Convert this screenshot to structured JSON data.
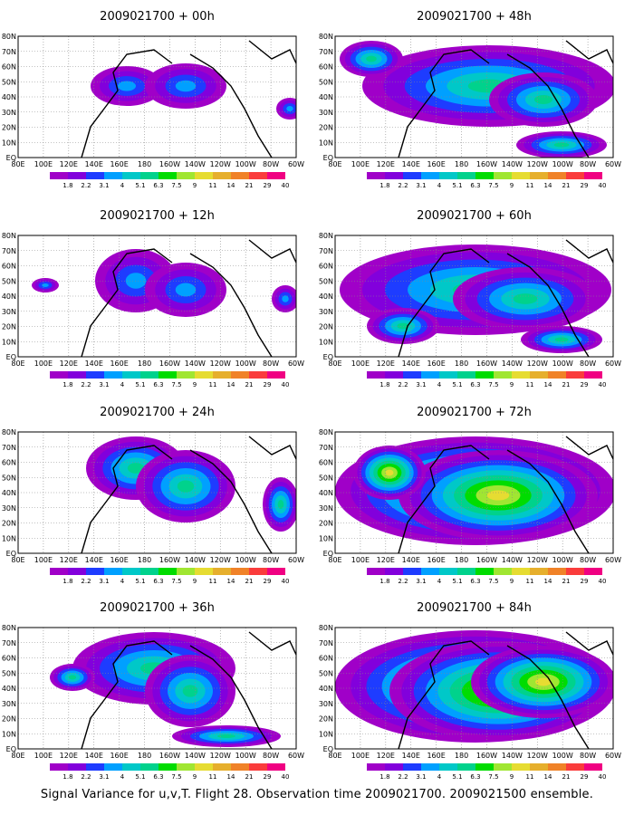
{
  "caption": "Signal Variance for u,v,T. Flight 28. Observation time 2009021700. 2009021500 ensemble.",
  "lon_labels": [
    "80E",
    "100E",
    "120E",
    "140E",
    "160E",
    "180",
    "160W",
    "140W",
    "120W",
    "100W",
    "80W",
    "60W"
  ],
  "lat_labels": [
    "80N",
    "70N",
    "60N",
    "50N",
    "40N",
    "30N",
    "20N",
    "10N",
    "EQ"
  ],
  "colorbar": {
    "labels": [
      "1.8",
      "2.2",
      "3.1",
      "4",
      "5.1",
      "6.3",
      "7.5",
      "9",
      "11",
      "14",
      "21",
      "29",
      "40"
    ],
    "colors": [
      "#a000c8",
      "#8200dc",
      "#1e3cff",
      "#00a0ff",
      "#00c8c8",
      "#00d28c",
      "#00dc00",
      "#a0e632",
      "#e6dc32",
      "#e6af2d",
      "#f08228",
      "#fa3c3c",
      "#f00082"
    ]
  },
  "ocean_color": "#ffffff",
  "panels": [
    {
      "title": "2009021700 + 00h",
      "coverage": "low"
    },
    {
      "title": "2009021700 + 48h",
      "coverage": "medium"
    },
    {
      "title": "2009021700 + 12h",
      "coverage": "low"
    },
    {
      "title": "2009021700 + 60h",
      "coverage": "medium"
    },
    {
      "title": "2009021700 + 24h",
      "coverage": "low-medium"
    },
    {
      "title": "2009021700 + 72h",
      "coverage": "high"
    },
    {
      "title": "2009021700 + 36h",
      "coverage": "low-medium"
    },
    {
      "title": "2009021700 + 84h",
      "coverage": "high"
    }
  ]
}
